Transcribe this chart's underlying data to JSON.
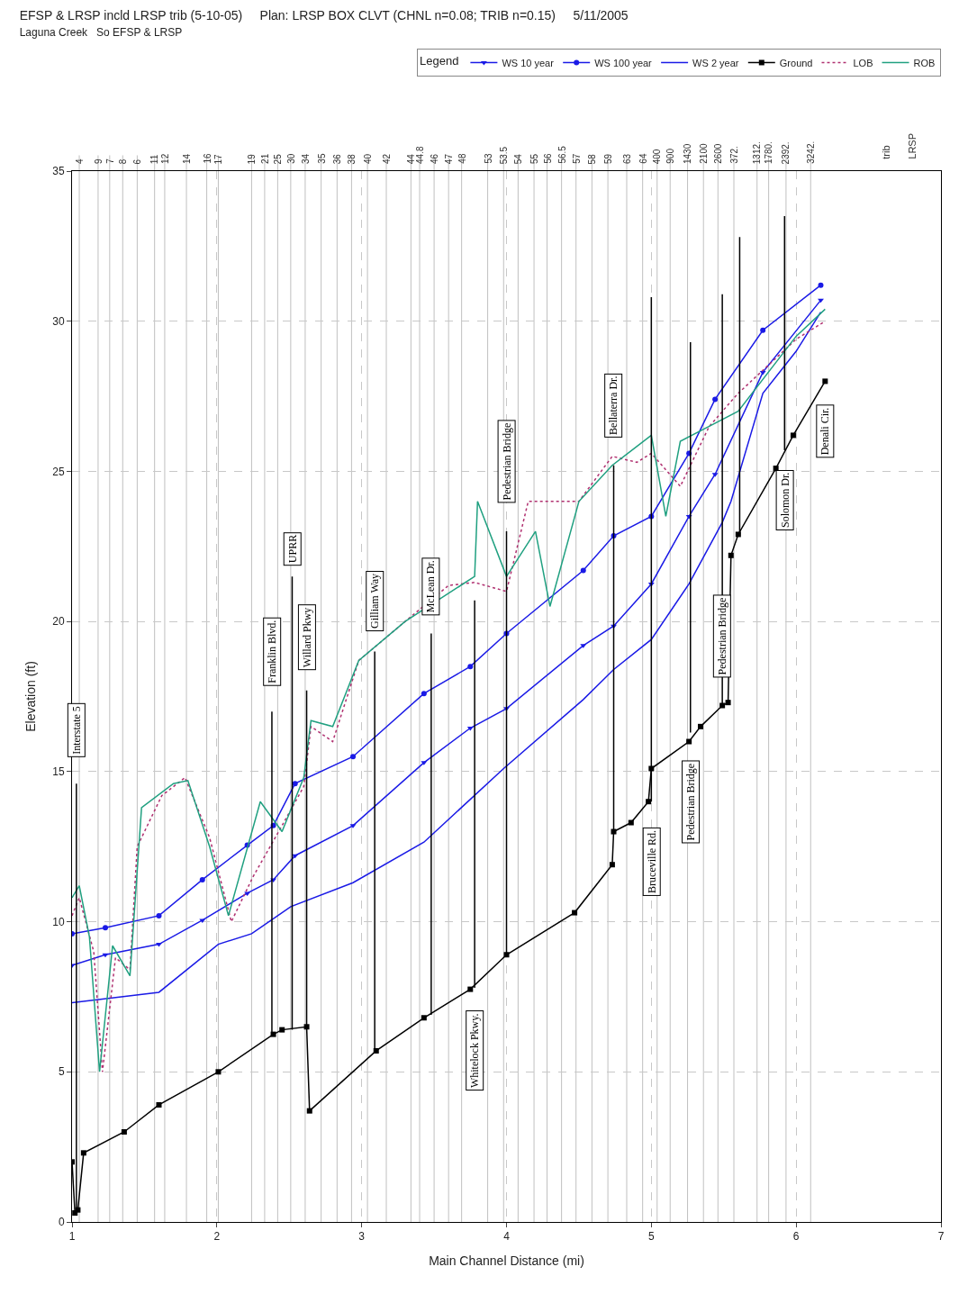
{
  "chart_data": {
    "type": "line",
    "title": "EFSP & LRSP incld LRSP trib (5-10-05)     Plan: LRSP BOX CLVT (CHNL n=0.08; TRIB n=0.15)     5/11/2005",
    "subtitle": "Laguna Creek   So EFSP & LRSP",
    "xlabel": "Main Channel Distance (mi)",
    "ylabel": "Elevation (ft)",
    "legend_title": "Legend",
    "xlim": [
      1,
      7
    ],
    "xticks": [
      1,
      2,
      3,
      4,
      5,
      6,
      7
    ],
    "ylim": [
      0,
      35
    ],
    "yticks": [
      0,
      5,
      10,
      15,
      20,
      25,
      30,
      35
    ],
    "grid": true,
    "legend": "top right",
    "ref_lines": [
      {
        "axis": "x",
        "value": 1.05
      },
      {
        "axis": "x",
        "value": 1.18
      },
      {
        "axis": "x",
        "value": 1.26
      },
      {
        "axis": "x",
        "value": 1.35
      },
      {
        "axis": "x",
        "value": 1.45
      },
      {
        "axis": "x",
        "value": 1.57
      },
      {
        "axis": "x",
        "value": 1.64
      },
      {
        "axis": "x",
        "value": 1.79
      },
      {
        "axis": "x",
        "value": 1.93
      },
      {
        "axis": "x",
        "value": 2.01
      },
      {
        "axis": "x",
        "value": 2.24
      },
      {
        "axis": "x",
        "value": 2.33
      },
      {
        "axis": "x",
        "value": 2.42
      },
      {
        "axis": "x",
        "value": 2.51
      },
      {
        "axis": "x",
        "value": 2.61
      },
      {
        "axis": "x",
        "value": 2.72
      },
      {
        "axis": "x",
        "value": 2.83
      },
      {
        "axis": "x",
        "value": 2.93
      },
      {
        "axis": "x",
        "value": 3.04
      },
      {
        "axis": "x",
        "value": 3.17
      },
      {
        "axis": "x",
        "value": 3.34
      },
      {
        "axis": "x",
        "value": 3.4
      },
      {
        "axis": "x",
        "value": 3.5
      },
      {
        "axis": "x",
        "value": 3.6
      },
      {
        "axis": "x",
        "value": 3.69
      },
      {
        "axis": "x",
        "value": 3.87
      },
      {
        "axis": "x",
        "value": 3.98
      },
      {
        "axis": "x",
        "value": 4.08
      },
      {
        "axis": "x",
        "value": 4.19
      },
      {
        "axis": "x",
        "value": 4.28
      },
      {
        "axis": "x",
        "value": 4.38
      },
      {
        "axis": "x",
        "value": 4.48
      },
      {
        "axis": "x",
        "value": 4.59
      },
      {
        "axis": "x",
        "value": 4.7
      },
      {
        "axis": "x",
        "value": 4.83
      },
      {
        "axis": "x",
        "value": 4.94
      },
      {
        "axis": "x",
        "value": 5.04
      },
      {
        "axis": "x",
        "value": 5.13
      },
      {
        "axis": "x",
        "value": 5.25
      },
      {
        "axis": "x",
        "value": 5.36
      },
      {
        "axis": "x",
        "value": 5.46
      },
      {
        "axis": "x",
        "value": 5.57
      },
      {
        "axis": "x",
        "value": 5.73
      },
      {
        "axis": "x",
        "value": 5.81
      },
      {
        "axis": "x",
        "value": 5.93
      },
      {
        "axis": "x",
        "value": 6.1
      }
    ],
    "series": [
      {
        "name": "WS 10 year",
        "color": "#1a1ae6",
        "marker": "triangle",
        "line_style": "solid",
        "x": [
          1.0,
          1.23,
          1.6,
          1.9,
          2.21,
          2.39,
          2.54,
          2.94,
          3.43,
          3.75,
          4.0,
          4.53,
          4.74,
          5.0,
          5.26,
          5.44,
          5.77,
          6.17
        ],
        "values": [
          8.55,
          8.9,
          9.25,
          10.05,
          10.95,
          11.4,
          12.2,
          13.2,
          15.3,
          16.45,
          17.1,
          19.2,
          19.85,
          21.25,
          23.5,
          24.9,
          28.3,
          30.7
        ]
      },
      {
        "name": "WS 100 year",
        "color": "#1a1ae6",
        "marker": "circle",
        "line_style": "solid",
        "x": [
          1.0,
          1.23,
          1.6,
          1.9,
          2.21,
          2.39,
          2.54,
          2.94,
          3.43,
          3.75,
          4.0,
          4.53,
          4.74,
          5.0,
          5.26,
          5.44,
          5.77,
          6.17
        ],
        "values": [
          9.6,
          9.8,
          10.2,
          11.4,
          12.55,
          13.2,
          14.6,
          15.5,
          17.6,
          18.5,
          19.6,
          21.7,
          22.85,
          23.5,
          25.6,
          27.4,
          29.7,
          31.2
        ]
      },
      {
        "name": "WS 2 year",
        "color": "#1a1ae6",
        "marker": "none",
        "line_style": "solid",
        "x": [
          1.0,
          1.6,
          2.01,
          2.24,
          2.51,
          2.94,
          3.43,
          3.98,
          4.53,
          4.74,
          5.0,
          5.26,
          5.49,
          5.55,
          5.77,
          6.0,
          6.17
        ],
        "values": [
          7.3,
          7.65,
          9.25,
          9.6,
          10.5,
          11.3,
          12.65,
          15.1,
          17.4,
          18.4,
          19.4,
          21.25,
          23.3,
          24.0,
          27.6,
          29.0,
          30.3
        ]
      },
      {
        "name": "Ground",
        "color": "#000000",
        "marker": "square",
        "line_style": "solid",
        "x": [
          1.0,
          1.02,
          1.04,
          1.08,
          1.36,
          1.6,
          2.01,
          2.39,
          2.45,
          2.62,
          2.64,
          3.1,
          3.43,
          3.75,
          4.0,
          4.47,
          4.73,
          4.74,
          4.86,
          4.98,
          5.0,
          5.26,
          5.34,
          5.49,
          5.53,
          5.55,
          5.6,
          5.86,
          5.98,
          6.2
        ],
        "values": [
          2.0,
          0.3,
          0.4,
          2.3,
          3.0,
          3.9,
          5.0,
          6.25,
          6.4,
          6.5,
          3.7,
          5.7,
          6.8,
          7.75,
          8.9,
          10.3,
          11.9,
          13.0,
          13.3,
          14.0,
          15.1,
          16.0,
          16.5,
          17.2,
          17.3,
          22.2,
          22.9,
          25.1,
          26.2,
          28.0
        ]
      },
      {
        "name": "LOB",
        "color": "#b03070",
        "marker": "none",
        "line_style": "dotted",
        "x": [
          1.0,
          1.05,
          1.15,
          1.21,
          1.3,
          1.4,
          1.45,
          1.62,
          1.78,
          1.95,
          2.1,
          2.25,
          2.45,
          2.6,
          2.65,
          2.8,
          2.98,
          3.3,
          3.6,
          3.78,
          4.0,
          4.15,
          4.5,
          4.73,
          4.9,
          5.0,
          5.2,
          5.4,
          5.6,
          6.0,
          6.2
        ],
        "values": [
          10.2,
          10.8,
          9.0,
          5.0,
          8.8,
          8.4,
          12.5,
          14.2,
          14.8,
          12.8,
          10.0,
          11.5,
          13.2,
          14.5,
          16.5,
          16.0,
          18.7,
          20.0,
          21.2,
          21.3,
          21.0,
          24.0,
          24.0,
          25.5,
          25.3,
          25.6,
          24.5,
          26.5,
          27.6,
          29.4,
          30.0
        ]
      },
      {
        "name": "ROB",
        "color": "#20a080",
        "marker": "none",
        "line_style": "solid",
        "x": [
          1.0,
          1.05,
          1.12,
          1.19,
          1.28,
          1.4,
          1.48,
          1.7,
          1.8,
          1.95,
          2.08,
          2.3,
          2.45,
          2.6,
          2.65,
          2.8,
          2.98,
          3.3,
          3.78,
          3.8,
          4.0,
          4.2,
          4.3,
          4.5,
          4.73,
          5.0,
          5.1,
          5.2,
          5.4,
          5.6,
          6.0,
          6.2
        ],
        "values": [
          10.8,
          11.2,
          9.5,
          5.0,
          9.2,
          8.2,
          13.8,
          14.6,
          14.7,
          12.5,
          10.2,
          14.0,
          13.0,
          14.8,
          16.7,
          16.5,
          18.7,
          20.0,
          21.5,
          24.0,
          21.5,
          23.0,
          20.5,
          24.0,
          25.2,
          26.2,
          23.5,
          26.0,
          26.5,
          27.0,
          29.5,
          30.4
        ]
      },
      {
        "color": "#000000",
        "marker": "none",
        "line_style": "solid",
        "x": [
          1.03,
          1.03
        ],
        "values": [
          0.4,
          14.6
        ]
      },
      {
        "color": "#000000",
        "marker": "none",
        "line_style": "solid",
        "x": [
          2.38,
          2.38
        ],
        "values": [
          6.3,
          17.0
        ]
      },
      {
        "color": "#000000",
        "marker": "none",
        "line_style": "solid",
        "x": [
          2.52,
          2.52
        ],
        "values": [
          6.4,
          21.5
        ]
      },
      {
        "color": "#000000",
        "marker": "none",
        "line_style": "solid",
        "x": [
          2.62,
          2.62
        ],
        "values": [
          6.5,
          17.7
        ]
      },
      {
        "color": "#000000",
        "marker": "none",
        "line_style": "solid",
        "x": [
          3.09,
          3.09
        ],
        "values": [
          5.7,
          19.0
        ]
      },
      {
        "color": "#000000",
        "marker": "none",
        "line_style": "solid",
        "x": [
          3.48,
          3.48
        ],
        "values": [
          6.9,
          19.6
        ]
      },
      {
        "color": "#000000",
        "marker": "none",
        "line_style": "solid",
        "x": [
          3.78,
          3.78
        ],
        "values": [
          7.8,
          20.7
        ]
      },
      {
        "color": "#000000",
        "marker": "none",
        "line_style": "solid",
        "x": [
          4.0,
          4.0
        ],
        "values": [
          8.9,
          23.0
        ]
      },
      {
        "color": "#000000",
        "marker": "none",
        "line_style": "solid",
        "x": [
          4.74,
          4.74
        ],
        "values": [
          13.0,
          25.2
        ]
      },
      {
        "color": "#000000",
        "marker": "none",
        "line_style": "solid",
        "x": [
          5.0,
          5.0
        ],
        "values": [
          14.0,
          30.8
        ]
      },
      {
        "color": "#000000",
        "marker": "none",
        "line_style": "solid",
        "x": [
          5.27,
          5.27
        ],
        "values": [
          16.3,
          29.3
        ]
      },
      {
        "color": "#000000",
        "marker": "none",
        "line_style": "solid",
        "x": [
          5.49,
          5.49
        ],
        "values": [
          17.2,
          30.9
        ]
      },
      {
        "color": "#000000",
        "marker": "none",
        "line_style": "solid",
        "x": [
          5.61,
          5.61
        ],
        "values": [
          22.9,
          32.8
        ]
      },
      {
        "color": "#000000",
        "marker": "none",
        "line_style": "solid",
        "x": [
          5.92,
          5.92
        ],
        "values": [
          25.7,
          33.5
        ]
      }
    ],
    "annotations": [
      {
        "text": "Interstate 5",
        "x": 1.03,
        "y": 14.6
      },
      {
        "text": "Franklin Blvd.",
        "x": 2.38,
        "y": 17.0
      },
      {
        "text": "UPRR",
        "x": 2.52,
        "y": 21.5
      },
      {
        "text": "Willard Pkwy",
        "x": 2.62,
        "y": 17.7
      },
      {
        "text": "Gilliam Way",
        "x": 3.09,
        "y": 19.0
      },
      {
        "text": "McLean Dr.",
        "x": 3.48,
        "y": 19.6
      },
      {
        "text": "Whitelock Pkwy.",
        "x": 3.78,
        "y": 7.8
      },
      {
        "text": "Pedestrian Bridge",
        "x": 4.0,
        "y": 23.0
      },
      {
        "text": "Bellaterra Dr.",
        "x": 4.74,
        "y": 25.2
      },
      {
        "text": "Bruceville Rd.",
        "x": 5.0,
        "y": 14.0
      },
      {
        "text": "Pedestrian Bridge",
        "x": 5.27,
        "y": 16.3
      },
      {
        "text": "Pedestrian Bridge",
        "x": 5.49,
        "y": 17.2
      },
      {
        "text": "Solomon Dr.",
        "x": 5.92,
        "y": 25.7
      },
      {
        "text": "Denali Cir.",
        "x": 6.2,
        "y": 28.0
      },
      {
        "text": "4",
        "x": 1.05,
        "y": 35
      },
      {
        "text": "9",
        "x": 1.18,
        "y": 35
      },
      {
        "text": "7",
        "x": 1.26,
        "y": 35
      },
      {
        "text": "8",
        "x": 1.35,
        "y": 35
      },
      {
        "text": "6",
        "x": 1.45,
        "y": 35
      },
      {
        "text": "11",
        "x": 1.57,
        "y": 35
      },
      {
        "text": "12",
        "x": 1.64,
        "y": 35
      },
      {
        "text": "14",
        "x": 1.79,
        "y": 35
      },
      {
        "text": "16",
        "x": 1.93,
        "y": 35
      },
      {
        "text": "17",
        "x": 2.01,
        "y": 35
      },
      {
        "text": "19",
        "x": 2.24,
        "y": 35
      },
      {
        "text": "21",
        "x": 2.33,
        "y": 35
      },
      {
        "text": "25",
        "x": 2.42,
        "y": 35
      },
      {
        "text": "30",
        "x": 2.51,
        "y": 35
      },
      {
        "text": "34",
        "x": 2.61,
        "y": 35
      },
      {
        "text": "35",
        "x": 2.72,
        "y": 35
      },
      {
        "text": "36",
        "x": 2.83,
        "y": 35
      },
      {
        "text": "38",
        "x": 2.93,
        "y": 35
      },
      {
        "text": "40",
        "x": 3.04,
        "y": 35
      },
      {
        "text": "42",
        "x": 3.17,
        "y": 35
      },
      {
        "text": "44",
        "x": 3.34,
        "y": 35
      },
      {
        "text": "44.8",
        "x": 3.4,
        "y": 35
      },
      {
        "text": "46",
        "x": 3.5,
        "y": 35
      },
      {
        "text": "47",
        "x": 3.6,
        "y": 35
      },
      {
        "text": "48",
        "x": 3.69,
        "y": 35
      },
      {
        "text": "53",
        "x": 3.87,
        "y": 35
      },
      {
        "text": "53.5",
        "x": 3.98,
        "y": 35
      },
      {
        "text": "54",
        "x": 4.08,
        "y": 35
      },
      {
        "text": "55",
        "x": 4.19,
        "y": 35
      },
      {
        "text": "56",
        "x": 4.28,
        "y": 35
      },
      {
        "text": "56.5",
        "x": 4.38,
        "y": 35
      },
      {
        "text": "57",
        "x": 4.48,
        "y": 35
      },
      {
        "text": "58",
        "x": 4.59,
        "y": 35
      },
      {
        "text": "59",
        "x": 4.7,
        "y": 35
      },
      {
        "text": "63",
        "x": 4.83,
        "y": 35
      },
      {
        "text": "64",
        "x": 4.94,
        "y": 35
      },
      {
        "text": "400",
        "x": 5.04,
        "y": 35
      },
      {
        "text": "900",
        "x": 5.13,
        "y": 35
      },
      {
        "text": "1430",
        "x": 5.25,
        "y": 35
      },
      {
        "text": "2100",
        "x": 5.36,
        "y": 35
      },
      {
        "text": "2600",
        "x": 5.46,
        "y": 35
      },
      {
        "text": "372.",
        "x": 5.57,
        "y": 35
      },
      {
        "text": "1312.",
        "x": 5.73,
        "y": 35
      },
      {
        "text": "1780.",
        "x": 5.81,
        "y": 35
      },
      {
        "text": "2392.",
        "x": 5.93,
        "y": 35
      },
      {
        "text": "3242.",
        "x": 6.1,
        "y": 35
      },
      "LRSP",
      "trib"
    ]
  }
}
